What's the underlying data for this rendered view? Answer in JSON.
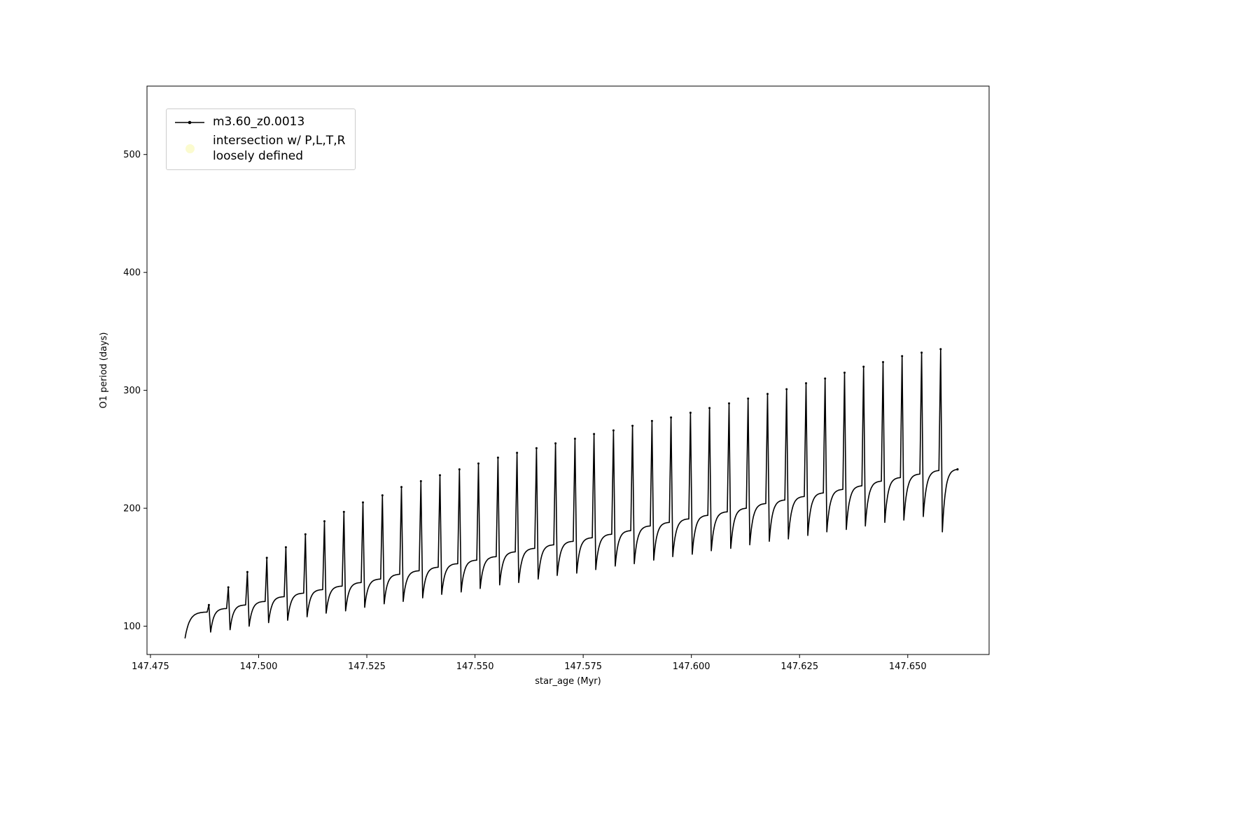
{
  "figure": {
    "background": "#ffffff"
  },
  "chart_data": {
    "type": "line",
    "title": "",
    "xlabel": "star_age (Myr)",
    "ylabel": "O1 period (days)",
    "xlim": [
      147.4742,
      147.6688
    ],
    "ylim": [
      76,
      558
    ],
    "xticks": [
      147.475,
      147.5,
      147.525,
      147.55,
      147.575,
      147.6,
      147.625,
      147.65
    ],
    "xtick_labels": [
      "147.475",
      "147.500",
      "147.525",
      "147.550",
      "147.575",
      "147.600",
      "147.625",
      "147.650"
    ],
    "yticks": [
      100,
      200,
      300,
      400,
      500
    ],
    "ytick_labels": [
      "100",
      "200",
      "300",
      "400",
      "500"
    ],
    "grid": false,
    "legend_position": "upper left",
    "legend": {
      "entries": [
        {
          "label": "m3.60_z0.0013",
          "marker": "line-dot",
          "color": "#000000"
        },
        {
          "label": "intersection w/ P,L,T,R\nloosely defined",
          "marker": "dot",
          "color": "#f7f7a8"
        }
      ]
    },
    "series": [
      {
        "name": "m3.60_z0.0013",
        "color": "#000000",
        "shape": "relaxation-oscillation",
        "start_x": 147.483,
        "end_x": 147.6615,
        "end_y": 233,
        "tail_low": 180,
        "spike_half_width": 0.0004,
        "spike_x": [
          147.4885,
          147.493,
          147.4974,
          147.5019,
          147.5063,
          147.5108,
          147.5152,
          147.5197,
          147.5241,
          147.5286,
          147.533,
          147.5375,
          147.5419,
          147.5464,
          147.5508,
          147.5553,
          147.5597,
          147.5642,
          147.5686,
          147.5731,
          147.5775,
          147.582,
          147.5864,
          147.5909,
          147.5953,
          147.5998,
          147.6042,
          147.6087,
          147.6131,
          147.6176,
          147.622,
          147.6265,
          147.6309,
          147.6354,
          147.6398,
          147.6443,
          147.6487,
          147.6532,
          147.6576
        ],
        "spike_peak": [
          118,
          133,
          146,
          158,
          167,
          178,
          189,
          197,
          205,
          211,
          218,
          223,
          228,
          233,
          238,
          243,
          247,
          251,
          255,
          259,
          263,
          266,
          270,
          274,
          277,
          281,
          285,
          289,
          293,
          297,
          301,
          306,
          310,
          315,
          320,
          324,
          329,
          332,
          335
        ],
        "plateau": [
          112,
          115,
          118,
          121,
          125,
          128,
          131,
          134,
          137,
          140,
          144,
          147,
          150,
          153,
          156,
          159,
          163,
          166,
          169,
          172,
          175,
          178,
          181,
          185,
          188,
          191,
          194,
          197,
          200,
          204,
          207,
          210,
          213,
          216,
          219,
          223,
          226,
          229,
          232
        ],
        "cycle_low": [
          90,
          95,
          97,
          100,
          103,
          105,
          108,
          111,
          113,
          116,
          119,
          121,
          124,
          127,
          129,
          132,
          135,
          137,
          140,
          143,
          145,
          148,
          151,
          153,
          156,
          159,
          161,
          164,
          166,
          169,
          172,
          174,
          177,
          180,
          182,
          185,
          188,
          190,
          193
        ]
      },
      {
        "name": "intersection w/ P,L,T,R loosely defined",
        "color": "#f7f7a8",
        "shape": "scatter",
        "points": []
      }
    ]
  }
}
